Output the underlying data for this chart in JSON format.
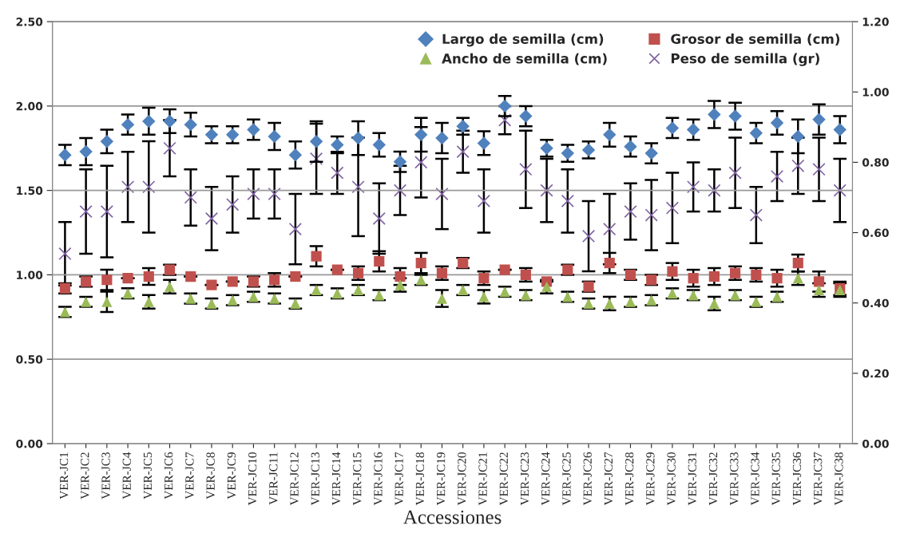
{
  "chart_data": {
    "type": "scatter",
    "xlabel": "Accessiones",
    "categories": [
      "VER-JC1",
      "VER-JC2",
      "VER-JC3",
      "VER-JC4",
      "VER-JC5",
      "VER-JC6",
      "VER-JC7",
      "VER-JC8",
      "VER-JC9",
      "VER-JC10",
      "VER-JC11",
      "VER-JC12",
      "VER-JC13",
      "VER-JC14",
      "VER-JC15",
      "VER-JC16",
      "VER-JC17",
      "VER-JC18",
      "VER-JC19",
      "VER-JC20",
      "VER-JC21",
      "VER-JC22",
      "VER-JC23",
      "VER-JC24",
      "VER-JC25",
      "VER-JC26",
      "VER-JC27",
      "VER-JC28",
      "VER-JC29",
      "VER-JC30",
      "VER-JC31",
      "VER-JC32",
      "VER-JC33",
      "VER-JC34",
      "VER-JC35",
      "VER-JC36",
      "VER-JC37",
      "VER-JC38"
    ],
    "series": [
      {
        "name": "Largo de semilla (cm)",
        "color": "#4f81bd",
        "marker": "diamond",
        "values": [
          1.71,
          1.73,
          1.79,
          1.89,
          1.91,
          1.91,
          1.89,
          1.83,
          1.83,
          1.86,
          1.82,
          1.71,
          1.79,
          1.77,
          1.81,
          1.77,
          1.67,
          1.83,
          1.81,
          1.88,
          1.78,
          2.0,
          1.94,
          1.75,
          1.72,
          1.74,
          1.83,
          1.76,
          1.72,
          1.87,
          1.86,
          1.95,
          1.94,
          1.84,
          1.9,
          1.82,
          1.92,
          1.86
        ],
        "errors": [
          0.06,
          0.08,
          0.07,
          0.06,
          0.08,
          0.07,
          0.07,
          0.05,
          0.05,
          0.06,
          0.08,
          0.08,
          0.12,
          0.05,
          0.1,
          0.07,
          0.06,
          0.1,
          0.09,
          0.05,
          0.07,
          0.06,
          0.06,
          0.05,
          0.05,
          0.05,
          0.07,
          0.06,
          0.06,
          0.06,
          0.06,
          0.08,
          0.08,
          0.06,
          0.07,
          0.1,
          0.09,
          0.08
        ]
      },
      {
        "name": "Grosor de semilla (cm)",
        "color": "#c0504d",
        "marker": "square",
        "values": [
          0.92,
          0.96,
          0.97,
          0.98,
          0.99,
          1.03,
          0.99,
          0.94,
          0.96,
          0.96,
          0.97,
          0.99,
          1.11,
          1.03,
          1.01,
          1.08,
          0.99,
          1.07,
          1.01,
          1.07,
          0.98,
          1.03,
          1.0,
          0.96,
          1.03,
          0.93,
          1.07,
          1.0,
          0.97,
          1.02,
          0.98,
          0.99,
          1.01,
          1.0,
          0.98,
          1.07,
          0.96,
          0.92
        ],
        "errors": [
          0.03,
          0.03,
          0.06,
          null,
          0.05,
          0.03,
          null,
          null,
          null,
          0.03,
          0.04,
          null,
          0.06,
          null,
          0.04,
          0.06,
          0.05,
          0.06,
          0.04,
          0.03,
          0.04,
          null,
          0.04,
          null,
          0.03,
          0.03,
          0.06,
          0.03,
          0.03,
          0.05,
          0.05,
          0.05,
          0.04,
          0.04,
          0.05,
          0.05,
          0.06,
          0.04
        ]
      },
      {
        "name": "Ancho de semilla (cm)",
        "color": "#9bbb59",
        "marker": "triangle",
        "values": [
          0.78,
          0.84,
          0.84,
          0.89,
          0.84,
          0.93,
          0.86,
          0.83,
          0.85,
          0.87,
          0.86,
          0.83,
          0.91,
          0.89,
          0.91,
          0.88,
          0.94,
          0.97,
          0.86,
          0.91,
          0.87,
          0.9,
          0.88,
          0.93,
          0.87,
          0.83,
          0.83,
          0.84,
          0.85,
          0.89,
          0.88,
          0.83,
          0.88,
          0.84,
          0.87,
          0.98,
          0.91,
          0.91
        ],
        "errors": [
          0.03,
          0.03,
          0.06,
          0.03,
          0.04,
          0.04,
          0.03,
          0.03,
          0.03,
          0.03,
          0.03,
          0.03,
          0.03,
          0.03,
          0.03,
          0.03,
          0.04,
          0.03,
          0.05,
          0.03,
          0.04,
          0.03,
          0.03,
          0.04,
          0.03,
          0.03,
          0.04,
          0.03,
          0.03,
          0.03,
          0.03,
          0.04,
          0.03,
          0.03,
          0.03,
          0.04,
          0.04,
          0.04
        ]
      },
      {
        "name": "Peso de semilla (gr)",
        "color": "#8064a2",
        "marker": "cross",
        "axis": "y2",
        "values": [
          0.54,
          0.66,
          0.66,
          0.73,
          0.73,
          0.84,
          0.7,
          0.64,
          0.68,
          0.71,
          0.71,
          0.61,
          0.81,
          0.77,
          0.73,
          0.64,
          0.72,
          0.8,
          0.71,
          0.83,
          0.69,
          0.92,
          0.78,
          0.72,
          0.69,
          0.59,
          0.61,
          0.66,
          0.65,
          0.67,
          0.73,
          0.72,
          0.77,
          0.65,
          0.76,
          0.79,
          0.78,
          0.72
        ],
        "errors": [
          0.09,
          0.12,
          0.13,
          0.1,
          0.13,
          0.08,
          0.08,
          0.09,
          0.08,
          0.07,
          0.07,
          0.1,
          0.1,
          0.06,
          0.14,
          0.1,
          0.07,
          0.1,
          0.1,
          0.06,
          0.09,
          0.04,
          0.11,
          0.09,
          0.09,
          0.1,
          0.1,
          0.08,
          0.1,
          0.1,
          0.07,
          0.06,
          0.1,
          0.08,
          0.07,
          0.08,
          0.09,
          0.09
        ]
      }
    ],
    "ylim": [
      0,
      2.5
    ],
    "yticks": [
      {
        "value": 0,
        "label": "0.00"
      },
      {
        "value": 0.5,
        "label": "0.50"
      },
      {
        "value": 1,
        "label": "1.00"
      },
      {
        "value": 1.5,
        "label": "1.50"
      },
      {
        "value": 2,
        "label": "2.00"
      },
      {
        "value": 2.5,
        "label": "2.50"
      }
    ],
    "y2lim": [
      0,
      1.2
    ],
    "y2ticks": [
      {
        "value": 0,
        "label": "0.00"
      },
      {
        "value": 0.2,
        "label": "0.20"
      },
      {
        "value": 0.4,
        "label": "0.40"
      },
      {
        "value": 0.6,
        "label": "0.60"
      },
      {
        "value": 0.8,
        "label": "0.80"
      },
      {
        "value": 1,
        "label": "1.00"
      },
      {
        "value": 1.2,
        "label": "1.20"
      }
    ],
    "grid": "y",
    "legend": "top right"
  }
}
